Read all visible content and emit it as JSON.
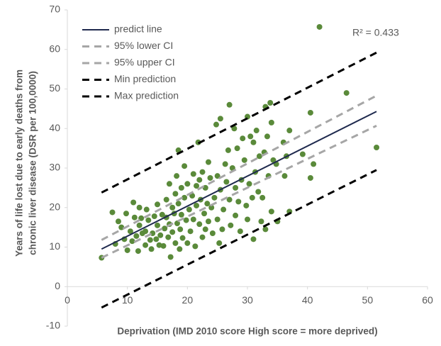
{
  "chart_data": {
    "type": "scatter",
    "x_label": "Deprivation (IMD 2010 score High score = more deprived)",
    "y_label": [
      "Years of life lost due to early deaths from",
      "chronic liver disease (DSR per 100,0000)"
    ],
    "annotation": "R² = 0.433",
    "xlim": [
      0,
      60
    ],
    "xticks": [
      0,
      10,
      20,
      30,
      40,
      50,
      60
    ],
    "ylim": [
      -10,
      70
    ],
    "yticks": [
      -10,
      0,
      10,
      20,
      30,
      40,
      50,
      60,
      70
    ],
    "legend_position": "upper-left",
    "points": {
      "color": "#5a8a3a",
      "x": [
        5.7,
        7.5,
        8,
        8.5,
        9,
        9.5,
        9.8,
        10,
        10.5,
        10.8,
        11,
        11.2,
        11.5,
        11.8,
        12,
        12,
        12.3,
        12.5,
        13,
        13,
        13.2,
        13.5,
        13.8,
        14,
        14.2,
        14.5,
        14.8,
        15,
        15,
        15.3,
        15.5,
        15.8,
        16,
        16.2,
        16.5,
        16.5,
        16.8,
        17,
        17,
        17.2,
        17.5,
        17.5,
        17.8,
        18,
        18,
        18.2,
        18.3,
        18.5,
        18.5,
        18.7,
        18.8,
        19,
        19,
        19.2,
        19.5,
        19.5,
        19.8,
        20,
        20,
        20.3,
        20.5,
        20.8,
        21,
        21,
        21.3,
        21.5,
        21.5,
        21.8,
        22,
        22,
        22.2,
        22.5,
        22.5,
        22.8,
        23,
        23,
        23.3,
        23.5,
        23.5,
        23.8,
        24,
        24.2,
        24.5,
        24.8,
        25,
        25,
        25.3,
        25.5,
        25.5,
        25.8,
        26,
        26.3,
        26.5,
        26.8,
        27,
        27,
        27.2,
        27.5,
        27.8,
        28,
        28,
        28.3,
        28.5,
        28.8,
        29,
        29.2,
        29.5,
        29.8,
        30,
        30,
        30.3,
        30.5,
        30.8,
        31,
        31,
        31.3,
        31.5,
        31.8,
        32,
        32.3,
        32.5,
        32.8,
        33,
        33,
        33.3,
        33.5,
        33.8,
        34,
        34,
        34.3,
        34.8,
        35,
        36,
        36.2,
        36.5,
        37,
        37,
        39.2,
        40.5,
        40.5,
        41,
        42,
        46.5,
        51.5
      ],
      "y": [
        7.3,
        18.8,
        10.8,
        16.5,
        15,
        12,
        18.5,
        9.2,
        14,
        11.5,
        21.3,
        17.5,
        12.8,
        9,
        15.5,
        20,
        17.3,
        13.5,
        14,
        10.5,
        19.5,
        16.8,
        11.8,
        9.5,
        13.5,
        17.8,
        12,
        20.8,
        15.5,
        10.5,
        13,
        18.2,
        10.3,
        14.7,
        22,
        17.5,
        12.5,
        26,
        15.8,
        7.5,
        20,
        13.8,
        18.5,
        23.5,
        11,
        28,
        16,
        34.5,
        21,
        9.5,
        14.5,
        25,
        18.2,
        12.3,
        30.5,
        22.5,
        16.8,
        26,
        11,
        19.5,
        14,
        23,
        28.5,
        17,
        10.2,
        25.5,
        20.5,
        36.5,
        27,
        15.8,
        22,
        29,
        12.5,
        18.5,
        25,
        14.5,
        21,
        31.5,
        16.5,
        27.5,
        20,
        13.5,
        22.5,
        41,
        28,
        17,
        11,
        42.5,
        24.5,
        14.5,
        19.5,
        31,
        26.5,
        34.5,
        46,
        22,
        15.5,
        30,
        40,
        25,
        18,
        35,
        21.5,
        14,
        27,
        37.5,
        32,
        20.5,
        43,
        17,
        26,
        38,
        22.5,
        36.5,
        12,
        29,
        39.5,
        24,
        33,
        16.5,
        22.5,
        34,
        45.5,
        14.5,
        38,
        28,
        46.5,
        41.5,
        19,
        32,
        31,
        16.5,
        36.5,
        28,
        33,
        39.5,
        19,
        33.5,
        44,
        27.5,
        31,
        65.7,
        49,
        35.2
      ]
    },
    "series": [
      {
        "name": "predict line",
        "color": "#1f2a4e",
        "dash": "solid",
        "x": [
          5.7,
          51.5
        ],
        "values": [
          9.5,
          44.3
        ]
      },
      {
        "name": "95% lower CI",
        "color": "#a6a6a6",
        "dash": "dashed",
        "x": [
          5.7,
          51.5
        ],
        "values": [
          7.3,
          40.7
        ]
      },
      {
        "name": "95% upper CI",
        "color": "#a6a6a6",
        "dash": "dashed",
        "x": [
          5.7,
          51.5
        ],
        "values": [
          11.8,
          48.3
        ]
      },
      {
        "name": "Min prediction",
        "color": "#000000",
        "dash": "dashed",
        "x": [
          5.7,
          51.5
        ],
        "values": [
          -5.3,
          29.5
        ]
      },
      {
        "name": "Max prediction",
        "color": "#000000",
        "dash": "dashed",
        "x": [
          5.7,
          51.5
        ],
        "values": [
          23.8,
          59.2
        ]
      }
    ]
  }
}
